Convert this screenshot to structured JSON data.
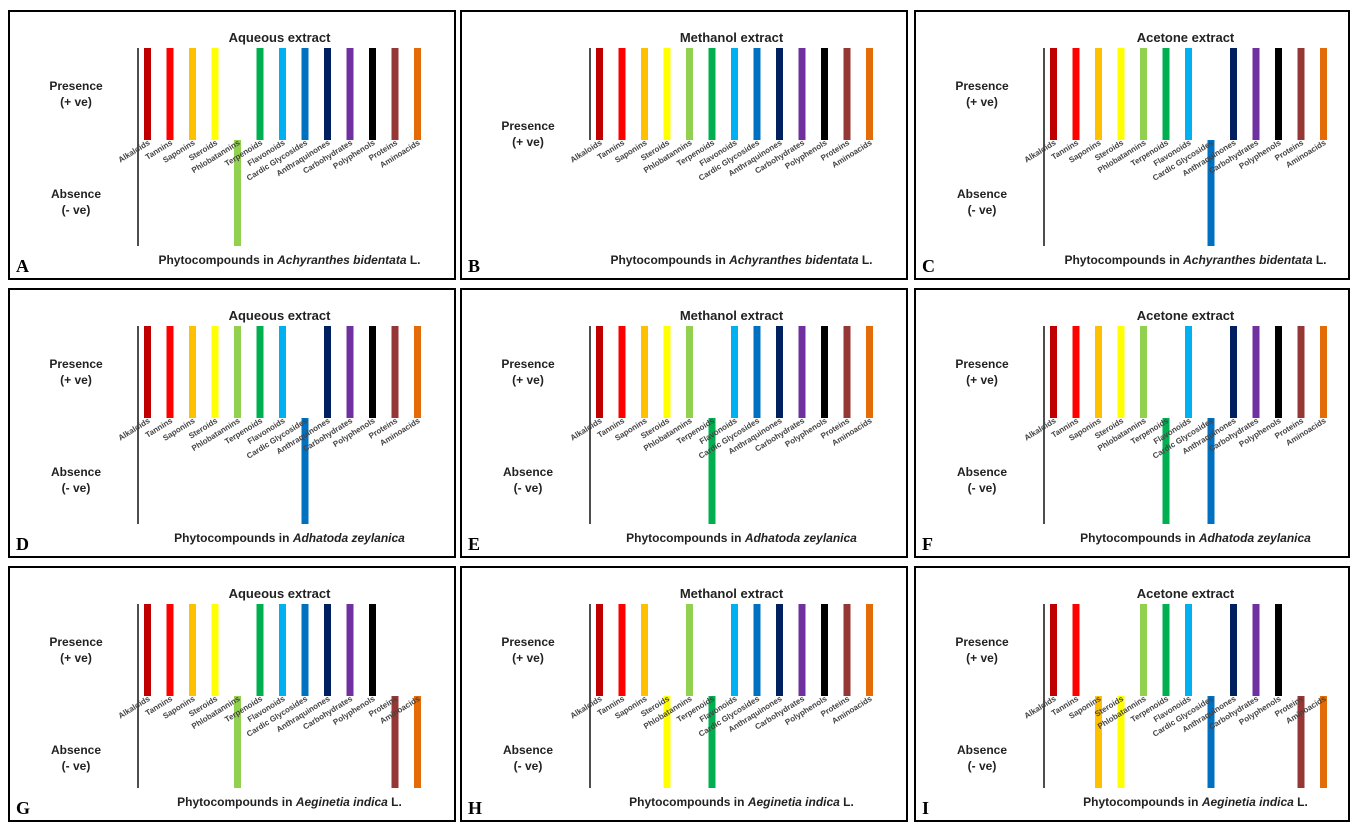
{
  "colors": [
    "#c00000",
    "#ff0000",
    "#ffc000",
    "#ffff00",
    "#92d050",
    "#00b050",
    "#00b0f0",
    "#0070c0",
    "#002060",
    "#7030a0",
    "#000000",
    "#953735",
    "#e36c09"
  ],
  "chart_data": [
    {
      "type": "bar",
      "panel_label": "A",
      "title": "Aqueous extract",
      "ylabel_presence": "Presence",
      "ylabel_presence_sub": "(+ ve)",
      "ylabel_absence": "Absence",
      "ylabel_absence_sub": "(- ve)",
      "caption_prefix": "Phytocompounds in ",
      "caption_species": "Achyranthes bidentata",
      "caption_suffix": " L.",
      "categories": [
        "Alkaloids",
        "Tannins",
        "Saponins",
        "Steroids",
        "Phlobatannins",
        "Terpenoids",
        "Flavonoids",
        "Cardic Glycosides",
        "Anthraquinones",
        "Carbohydrates",
        "Polyphenols",
        "Proteins",
        "Aminoacids"
      ],
      "values": [
        1,
        1,
        1,
        1,
        -1,
        1,
        1,
        1,
        1,
        1,
        1,
        1,
        1
      ]
    },
    {
      "type": "bar",
      "panel_label": "B",
      "title": "Methanol extract",
      "ylabel_presence": "Presence",
      "ylabel_presence_sub": "(+ ve)",
      "caption_prefix": "Phytocompounds in ",
      "caption_species": "Achyranthes bidentata",
      "caption_suffix": " L.",
      "categories": [
        "Alkaloids",
        "Tannins",
        "Saponins",
        "Steroids",
        "Phlobatannins",
        "Terpenoids",
        "Flavonoids",
        "Cardic Glycosides",
        "Anthraquinones",
        "Carbohydrates",
        "Polyphenols",
        "Proteins",
        "Aminoacids"
      ],
      "values": [
        1,
        1,
        1,
        1,
        1,
        1,
        1,
        1,
        1,
        1,
        1,
        1,
        1
      ]
    },
    {
      "type": "bar",
      "panel_label": "C",
      "title": "Acetone extract",
      "ylabel_presence": "Presence",
      "ylabel_presence_sub": "(+ ve)",
      "ylabel_absence": "Absence",
      "ylabel_absence_sub": "(- ve)",
      "caption_prefix": "Phytocompounds in ",
      "caption_species": "Achyranthes bidentata",
      "caption_suffix": " L.",
      "categories": [
        "Alkaloids",
        "Tannins",
        "Saponins",
        "Steroids",
        "Phlobatannins",
        "Terpenoids",
        "Flavonoids",
        "Cardic Glycosides",
        "Anthraquinones",
        "Carbohydrates",
        "Polyphenols",
        "Proteins",
        "Aminoacids"
      ],
      "values": [
        1,
        1,
        1,
        1,
        1,
        1,
        1,
        -1,
        1,
        1,
        1,
        1,
        1
      ]
    },
    {
      "type": "bar",
      "panel_label": "D",
      "title": "Aqueous extract",
      "ylabel_presence": "Presence",
      "ylabel_presence_sub": "(+ ve)",
      "ylabel_absence": "Absence",
      "ylabel_absence_sub": "(- ve)",
      "caption_prefix": "Phytocompounds in ",
      "caption_species": "Adhatoda zeylanica",
      "caption_suffix": "",
      "categories": [
        "Alkaloids",
        "Tannins",
        "Saponins",
        "Steroids",
        "Phlobatannins",
        "Terpenoids",
        "Flavonoids",
        "Cardic Glycosides",
        "Anthraquinones",
        "Carbohydrates",
        "Polyphenols",
        "Proteins",
        "Aminoacids"
      ],
      "values": [
        1,
        1,
        1,
        1,
        1,
        1,
        1,
        -1,
        1,
        1,
        1,
        1,
        1
      ]
    },
    {
      "type": "bar",
      "panel_label": "E",
      "title": "Methanol extract",
      "ylabel_presence": "Presence",
      "ylabel_presence_sub": "(+ ve)",
      "ylabel_absence": "Absence",
      "ylabel_absence_sub": "(- ve)",
      "caption_prefix": "Phytocompounds in ",
      "caption_species": "Adhatoda zeylanica",
      "caption_suffix": "",
      "categories": [
        "Alkaloids",
        "Tannins",
        "Saponins",
        "Steroids",
        "Phlobatannins",
        "Terpenoids",
        "Flavonoids",
        "Cardic Glycosides",
        "Anthraquinones",
        "Carbohydrates",
        "Polyphenols",
        "Proteins",
        "Aminoacids"
      ],
      "values": [
        1,
        1,
        1,
        1,
        1,
        -1,
        1,
        1,
        1,
        1,
        1,
        1,
        1
      ]
    },
    {
      "type": "bar",
      "panel_label": "F",
      "title": "Acetone extract",
      "ylabel_presence": "Presence",
      "ylabel_presence_sub": "(+ ve)",
      "ylabel_absence": "Absence",
      "ylabel_absence_sub": "(- ve)",
      "caption_prefix": "Phytocompounds in ",
      "caption_species": "Adhatoda zeylanica",
      "caption_suffix": "",
      "categories": [
        "Alkaloids",
        "Tannins",
        "Saponins",
        "Steroids",
        "Phlobatannins",
        "Terpenoids",
        "Flavonoids",
        "Cardic Glycosides",
        "Anthraquinones",
        "Carbohydrates",
        "Polyphenols",
        "Proteins",
        "Aminoacids"
      ],
      "values": [
        1,
        1,
        1,
        1,
        1,
        -1,
        1,
        -1,
        1,
        1,
        1,
        1,
        1
      ]
    },
    {
      "type": "bar",
      "panel_label": "G",
      "title": "Aqueous extract",
      "ylabel_presence": "Presence",
      "ylabel_presence_sub": "(+ ve)",
      "ylabel_absence": "Absence",
      "ylabel_absence_sub": "(- ve)",
      "caption_prefix": "Phytocompounds in ",
      "caption_species": "Aeginetia indica",
      "caption_suffix": " L.",
      "categories": [
        "Alkaloids",
        "Tannins",
        "Saponins",
        "Steroids",
        "Phlobatannins",
        "Terpenoids",
        "Flavonoids",
        "Cardic Glycosides",
        "Anthraquinones",
        "Carbohydrates",
        "Polyphenols",
        "Proteins",
        "Aminoacids"
      ],
      "values": [
        1,
        1,
        1,
        1,
        -1,
        1,
        1,
        1,
        1,
        1,
        1,
        -1,
        -1
      ]
    },
    {
      "type": "bar",
      "panel_label": "H",
      "title": "Methanol extract",
      "ylabel_presence": "Presence",
      "ylabel_presence_sub": "(+ ve)",
      "ylabel_absence": "Absence",
      "ylabel_absence_sub": "(- ve)",
      "caption_prefix": "Phytocompounds in ",
      "caption_species": "Aeginetia indica",
      "caption_suffix": " L.",
      "categories": [
        "Alkaloids",
        "Tannins",
        "Saponins",
        "Steroids",
        "Phlobatannins",
        "Terpenoids",
        "Flavonoids",
        "Cardic Glycosides",
        "Anthraquinones",
        "Carbohydrates",
        "Polyphenols",
        "Proteins",
        "Aminoacids"
      ],
      "values": [
        1,
        1,
        1,
        -1,
        1,
        -1,
        1,
        1,
        1,
        1,
        1,
        1,
        1
      ]
    },
    {
      "type": "bar",
      "panel_label": "I",
      "title": "Acetone extract",
      "ylabel_presence": "Presence",
      "ylabel_presence_sub": "(+ ve)",
      "ylabel_absence": "Absence",
      "ylabel_absence_sub": "(- ve)",
      "caption_prefix": "Phytocompounds in ",
      "caption_species": "Aeginetia indica",
      "caption_suffix": " L.",
      "categories": [
        "Alkaloids",
        "Tannins",
        "Saponins",
        "Steroids",
        "Phlobatannins",
        "Terpenoids",
        "Flavonoids",
        "Cardic Glycosides",
        "Anthraquinones",
        "Carbohydrates",
        "Polyphenols",
        "Proteins",
        "Aminoacids"
      ],
      "values": [
        1,
        1,
        -1,
        -1,
        1,
        1,
        1,
        -1,
        1,
        1,
        1,
        -1,
        -1
      ]
    }
  ]
}
